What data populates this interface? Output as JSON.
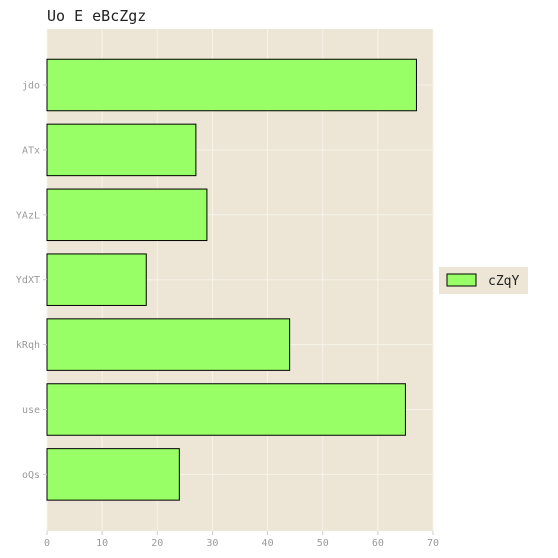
{
  "chart_data": {
    "type": "bar",
    "orientation": "horizontal",
    "title": "Uo E eBcZgz",
    "categories": [
      "jdo",
      "ATx",
      "YAzL",
      "YdXT",
      "kRqh",
      "use",
      "oQs"
    ],
    "series": [
      {
        "name": "cZqY",
        "values": [
          67,
          27,
          29,
          18,
          44,
          65,
          24
        ],
        "color": "#99ff66"
      }
    ],
    "xlim": [
      0,
      70
    ],
    "xticks": [
      0,
      10,
      20,
      30,
      40,
      50,
      60,
      70
    ],
    "grid": true,
    "legend_position": "right",
    "colors": {
      "panel_background": "#ede6d6",
      "grid": "#f7f3ea",
      "bar_fill": "#99ff66",
      "bar_stroke": "#000000",
      "tick_text": "#9a9a9a"
    }
  }
}
